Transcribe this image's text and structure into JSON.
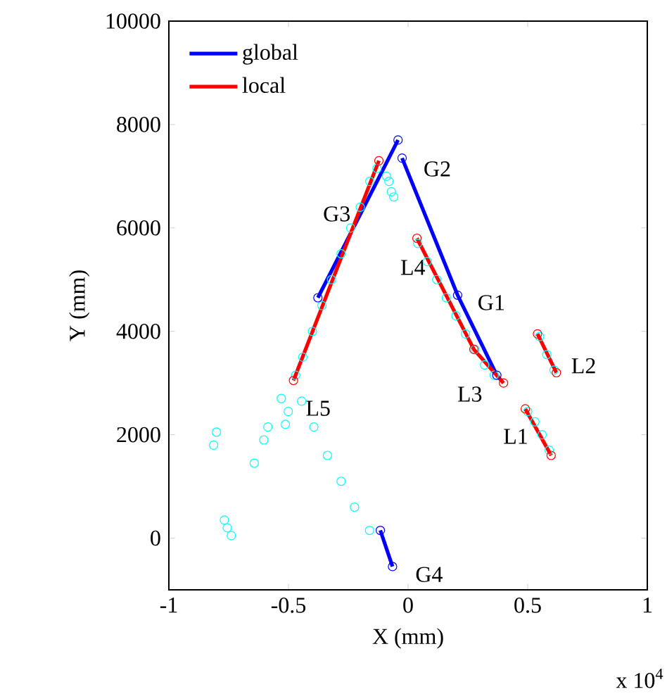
{
  "chart_data": {
    "type": "scatter",
    "xlabel": "X (mm)",
    "ylabel": "Y (mm)",
    "xlim": [
      -1,
      1
    ],
    "ylim": [
      -1000,
      10000
    ],
    "xticks": [
      -1,
      -0.5,
      0,
      0.5,
      1
    ],
    "yticks": [
      0,
      2000,
      4000,
      6000,
      8000,
      10000
    ],
    "marker": "circle",
    "legend": "top left",
    "grid": false,
    "series": [
      {
        "color": "#00ffff",
        "x": [
          -0.801,
          -0.813,
          -0.768,
          -0.756,
          -0.739,
          -0.643,
          -0.603,
          -0.586,
          -0.53,
          -0.513,
          -0.501,
          -0.445,
          -0.394,
          -0.337,
          -0.28,
          -0.224,
          -0.161,
          -0.47,
          -0.44,
          -0.4,
          -0.36,
          -0.32,
          -0.28,
          -0.24,
          -0.2,
          -0.16,
          -0.13,
          -0.09,
          -0.08,
          -0.07,
          -0.06,
          0.04,
          0.08,
          0.12,
          0.16,
          0.2,
          0.24,
          0.28,
          0.32,
          0.36,
          0.55,
          0.58,
          0.61,
          0.5,
          0.53,
          0.56,
          0.59
        ],
        "values": [
          2050,
          1800,
          350,
          200,
          50,
          1450,
          1900,
          2150,
          2700,
          2200,
          2450,
          2650,
          2150,
          1600,
          1100,
          600,
          150,
          3150,
          3500,
          4000,
          4500,
          5000,
          5500,
          6000,
          6400,
          6900,
          7150,
          7000,
          6900,
          6700,
          6600,
          5700,
          5350,
          5000,
          4650,
          4300,
          3950,
          3650,
          3350,
          3150,
          3900,
          3550,
          3250,
          2450,
          2250,
          2000,
          1700
        ]
      },
      {
        "name": "global",
        "type": "line",
        "color": "#0000ff",
        "x": [
          -0.377,
          -0.042,
          null,
          -0.025,
          0.207,
          0.371,
          null,
          -0.116,
          -0.065
        ],
        "values": [
          4650,
          7700,
          null,
          7350,
          4700,
          3150,
          null,
          150,
          -550
        ]
      },
      {
        "name": "local",
        "type": "line",
        "color": "#ff0000",
        "x": [
          -0.479,
          -0.122,
          null,
          0.037,
          0.275,
          0.399,
          null,
          0.541,
          0.62,
          null,
          0.49,
          0.598
        ],
        "values": [
          3050,
          7300,
          null,
          5800,
          3650,
          3000,
          null,
          3950,
          3200,
          null,
          2500,
          1600
        ]
      }
    ],
    "annotations": [
      "G1",
      "G2",
      "G3",
      "G4",
      "L1",
      "L2",
      "L3",
      "L4",
      "L5",
      "x 10$^{4}$"
    ]
  }
}
